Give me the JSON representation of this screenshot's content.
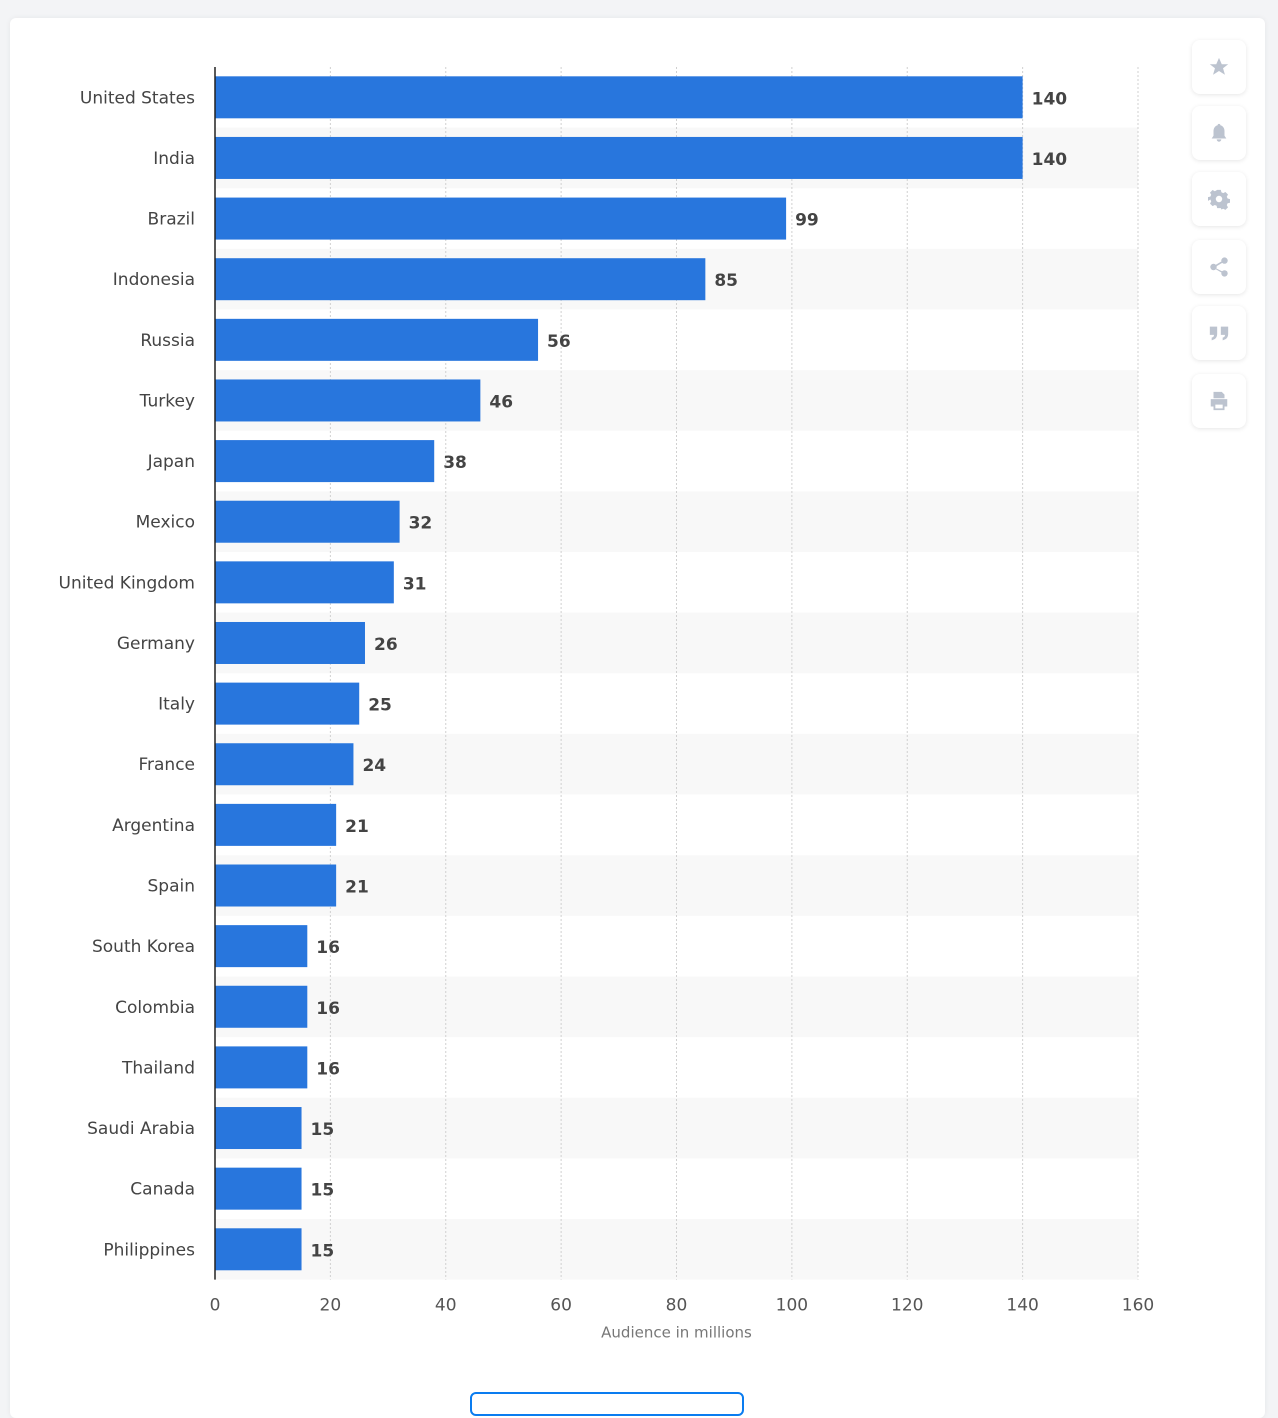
{
  "chart_data": {
    "type": "bar",
    "orientation": "horizontal",
    "categories": [
      "United States",
      "India",
      "Brazil",
      "Indonesia",
      "Russia",
      "Turkey",
      "Japan",
      "Mexico",
      "United Kingdom",
      "Germany",
      "Italy",
      "France",
      "Argentina",
      "Spain",
      "South Korea",
      "Colombia",
      "Thailand",
      "Saudi Arabia",
      "Canada",
      "Philippines"
    ],
    "values": [
      140,
      140,
      99,
      85,
      56,
      46,
      38,
      32,
      31,
      26,
      25,
      24,
      21,
      21,
      16,
      16,
      16,
      15,
      15,
      15
    ],
    "xlabel": "Audience in millions",
    "ylabel": "",
    "xlim": [
      0,
      160
    ],
    "xticks": [
      0,
      20,
      40,
      60,
      80,
      100,
      120,
      140,
      160
    ],
    "grid": true,
    "bar_color": "#2876dd",
    "data_labels": true
  },
  "sidebar": {
    "icons": [
      "star-icon",
      "bell-icon",
      "gear-icon",
      "share-icon",
      "quote-icon",
      "print-icon"
    ]
  }
}
